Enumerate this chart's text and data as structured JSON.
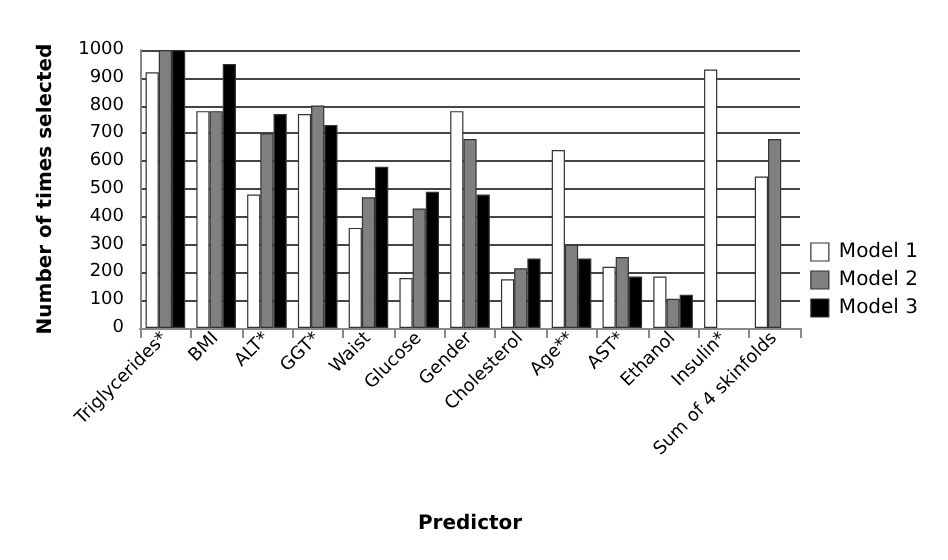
{
  "chart_data": {
    "type": "bar",
    "xlabel": "Predictor",
    "ylabel": "Number of times selected",
    "categories": [
      "Triglycerides*",
      "BMI",
      "ALT*",
      "GGT*",
      "Waist",
      "Glucose",
      "Gender",
      "Cholesterol",
      "Age**",
      "AST*",
      "Ethanol",
      "Insulin*",
      "Sum of 4 skinfolds"
    ],
    "series": [
      {
        "name": "Model 1",
        "color": "#ffffff",
        "values": [
          920,
          780,
          480,
          770,
          360,
          180,
          780,
          175,
          640,
          220,
          185,
          930,
          545
        ]
      },
      {
        "name": "Model 2",
        "color": "#808080",
        "values": [
          1000,
          780,
          700,
          800,
          470,
          430,
          680,
          215,
          300,
          255,
          105,
          null,
          680
        ]
      },
      {
        "name": "Model 3",
        "color": "#000000",
        "values": [
          1000,
          950,
          770,
          730,
          580,
          490,
          480,
          250,
          250,
          185,
          120,
          null,
          null
        ]
      }
    ],
    "ylim": [
      0,
      1000
    ],
    "yticks": [
      0,
      100,
      200,
      300,
      400,
      500,
      600,
      700,
      800,
      900,
      1000
    ],
    "grid": "y",
    "legend": "right"
  }
}
